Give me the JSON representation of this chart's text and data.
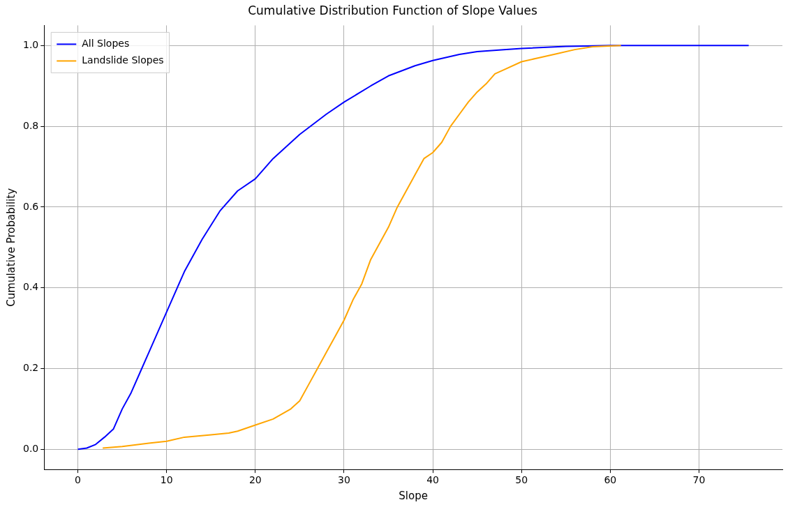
{
  "chart_data": {
    "type": "line",
    "title": "Cumulative Distribution Function of Slope Values",
    "xlabel": "Slope",
    "ylabel": "Cumulative Probability",
    "xlim": [
      -3.8,
      79.4
    ],
    "xticks": [
      0,
      10,
      20,
      30,
      40,
      50,
      60,
      70
    ],
    "ylim": [
      -0.05,
      1.05
    ],
    "yticks": [
      {
        "value": 0,
        "label": "0.0"
      },
      {
        "value": 0.2,
        "label": "0.2"
      },
      {
        "value": 0.4,
        "label": "0.4"
      },
      {
        "value": 0.6,
        "label": "0.6"
      },
      {
        "value": 0.8,
        "label": "0.8"
      },
      {
        "value": 1,
        "label": "1.0"
      }
    ],
    "grid": true,
    "legend": "top left",
    "marker": "none",
    "line_style": "solid",
    "series": [
      {
        "name": "All Slopes",
        "color": "#0000ff",
        "x": [
          0,
          1,
          2,
          3,
          4,
          5,
          6,
          7,
          8,
          10,
          12,
          14,
          16,
          18,
          20,
          22,
          25,
          28,
          30,
          33,
          35,
          38,
          40,
          43,
          45,
          48,
          50,
          55,
          60,
          65,
          70,
          75.6
        ],
        "values": [
          0,
          0.003,
          0.012,
          0.03,
          0.05,
          0.1,
          0.14,
          0.19,
          0.24,
          0.34,
          0.44,
          0.52,
          0.59,
          0.64,
          0.67,
          0.72,
          0.78,
          0.83,
          0.86,
          0.9,
          0.925,
          0.95,
          0.963,
          0.978,
          0.985,
          0.99,
          0.993,
          0.998,
          1.0,
          1.0,
          1.0,
          1.0
        ]
      },
      {
        "name": "Landslide Slopes",
        "color": "#ffa500",
        "x": [
          2.8,
          5,
          8,
          10,
          12,
          15,
          17,
          18,
          20,
          22,
          24,
          25,
          26,
          27,
          28,
          29,
          30,
          31,
          32,
          33,
          34,
          35,
          36,
          37,
          38,
          39,
          40,
          41,
          42,
          43,
          44,
          45,
          46,
          47,
          48,
          50,
          52,
          54,
          56,
          58,
          61.2
        ],
        "values": [
          0.003,
          0.007,
          0.015,
          0.02,
          0.03,
          0.036,
          0.04,
          0.045,
          0.06,
          0.075,
          0.1,
          0.12,
          0.16,
          0.2,
          0.24,
          0.28,
          0.32,
          0.37,
          0.41,
          0.47,
          0.51,
          0.55,
          0.6,
          0.64,
          0.68,
          0.72,
          0.735,
          0.76,
          0.8,
          0.83,
          0.86,
          0.885,
          0.905,
          0.93,
          0.94,
          0.96,
          0.97,
          0.98,
          0.99,
          0.997,
          1.0
        ]
      }
    ]
  }
}
